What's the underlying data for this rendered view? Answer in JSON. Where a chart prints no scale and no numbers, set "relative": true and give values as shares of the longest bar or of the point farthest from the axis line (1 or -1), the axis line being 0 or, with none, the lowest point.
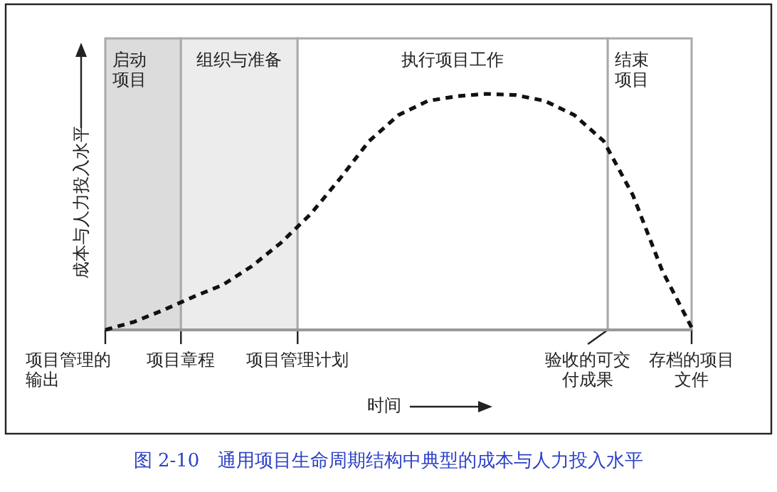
{
  "chart_data": {
    "type": "line",
    "title": "图 2-10　通用项目生命周期结构中典型的成本与人力投入水平",
    "xlabel": "时间",
    "ylabel": "成本与人力投入水平",
    "relative": true,
    "line_style": "dashed",
    "categories": [
      null,
      null,
      null,
      null,
      null,
      null,
      null,
      null,
      null,
      null,
      null,
      null,
      null,
      null,
      null,
      null,
      null,
      null,
      null,
      null,
      null
    ],
    "series": [
      {
        "color": "#111111",
        "values": [
          0.0,
          0.035,
          0.085,
          0.14,
          0.19,
          0.27,
          0.37,
          0.49,
          0.64,
          0.8,
          0.91,
          0.97,
          0.99,
          1.0,
          0.995,
          0.97,
          0.91,
          0.8,
          0.57,
          0.25,
          0.01
        ]
      }
    ],
    "annotations": [
      "启动项目",
      "组织与准备",
      "执行项目工作",
      "结束项目",
      "项目管理的输出",
      "项目章程",
      "项目管理计划",
      "验收的可交付成果",
      "存档的项目文件"
    ]
  }
}
